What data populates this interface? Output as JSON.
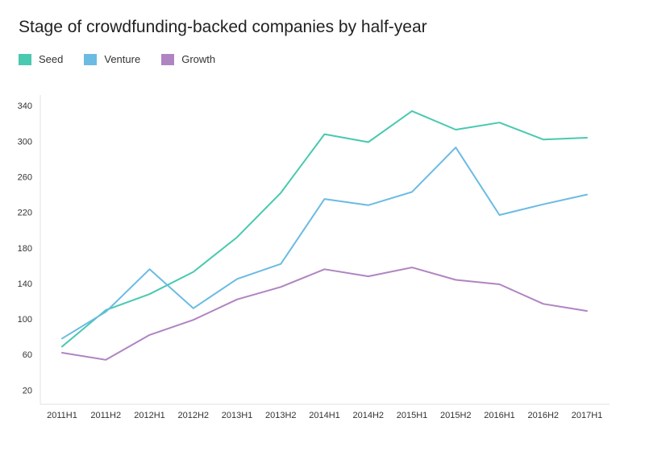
{
  "chart_data": {
    "type": "line",
    "title": "Stage of crowdfunding-backed companies by half-year",
    "xlabel": "",
    "ylabel": "",
    "categories": [
      "2011H1",
      "2011H2",
      "2012H1",
      "2012H2",
      "2013H1",
      "2013H2",
      "2014H1",
      "2014H2",
      "2015H1",
      "2015H2",
      "2016H1",
      "2016H2",
      "2017H1"
    ],
    "y_ticks": [
      20,
      60,
      100,
      140,
      180,
      220,
      260,
      300,
      340
    ],
    "ylim": [
      4,
      352
    ],
    "grid": false,
    "legend_position": "top-left",
    "series": [
      {
        "name": "Seed",
        "color": "#48c9b0",
        "values": [
          69,
          110,
          128,
          153,
          192,
          242,
          308,
          299,
          334,
          313,
          321,
          302,
          304
        ]
      },
      {
        "name": "Venture",
        "color": "#6bbbe3",
        "values": [
          78,
          108,
          156,
          112,
          145,
          162,
          235,
          228,
          243,
          293,
          217,
          229,
          240
        ]
      },
      {
        "name": "Growth",
        "color": "#b084c2",
        "values": [
          62,
          54,
          82,
          99,
          122,
          136,
          156,
          148,
          158,
          144,
          139,
          117,
          109
        ]
      }
    ]
  }
}
